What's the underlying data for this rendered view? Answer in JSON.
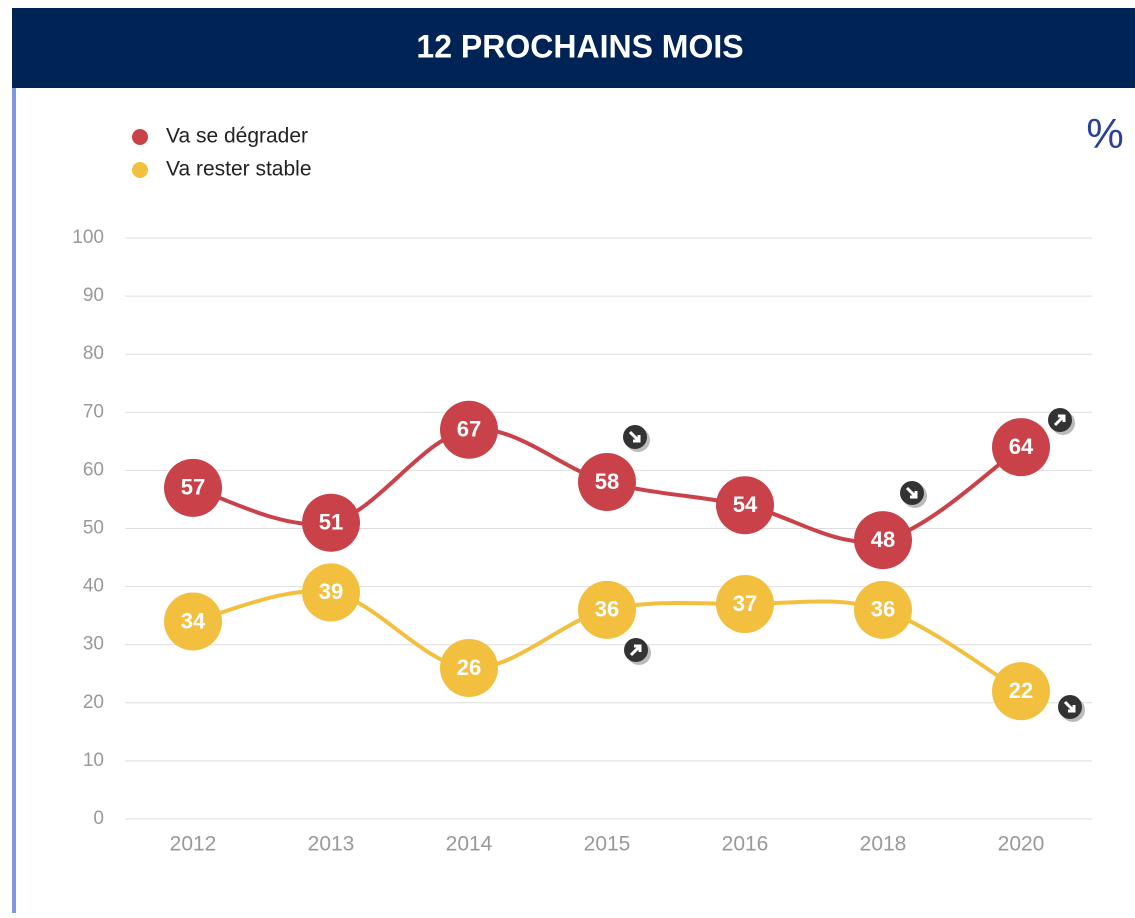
{
  "chart_data": {
    "type": "line",
    "title": "12 PROCHAINS MOIS",
    "unit_label": "%",
    "categories": [
      "2012",
      "2013",
      "2014",
      "2015",
      "2016",
      "2018",
      "2020"
    ],
    "series": [
      {
        "name": "Va se dégrader",
        "color": "#c9424a",
        "values": [
          57,
          51,
          67,
          58,
          54,
          48,
          64
        ]
      },
      {
        "name": "Va rester stable",
        "color": "#f2bf3f",
        "values": [
          34,
          39,
          26,
          36,
          37,
          36,
          22
        ]
      }
    ],
    "ylim": [
      0,
      100
    ],
    "yticks": [
      0,
      10,
      20,
      30,
      40,
      50,
      60,
      70,
      80,
      90,
      100
    ],
    "grid": true
  }
}
